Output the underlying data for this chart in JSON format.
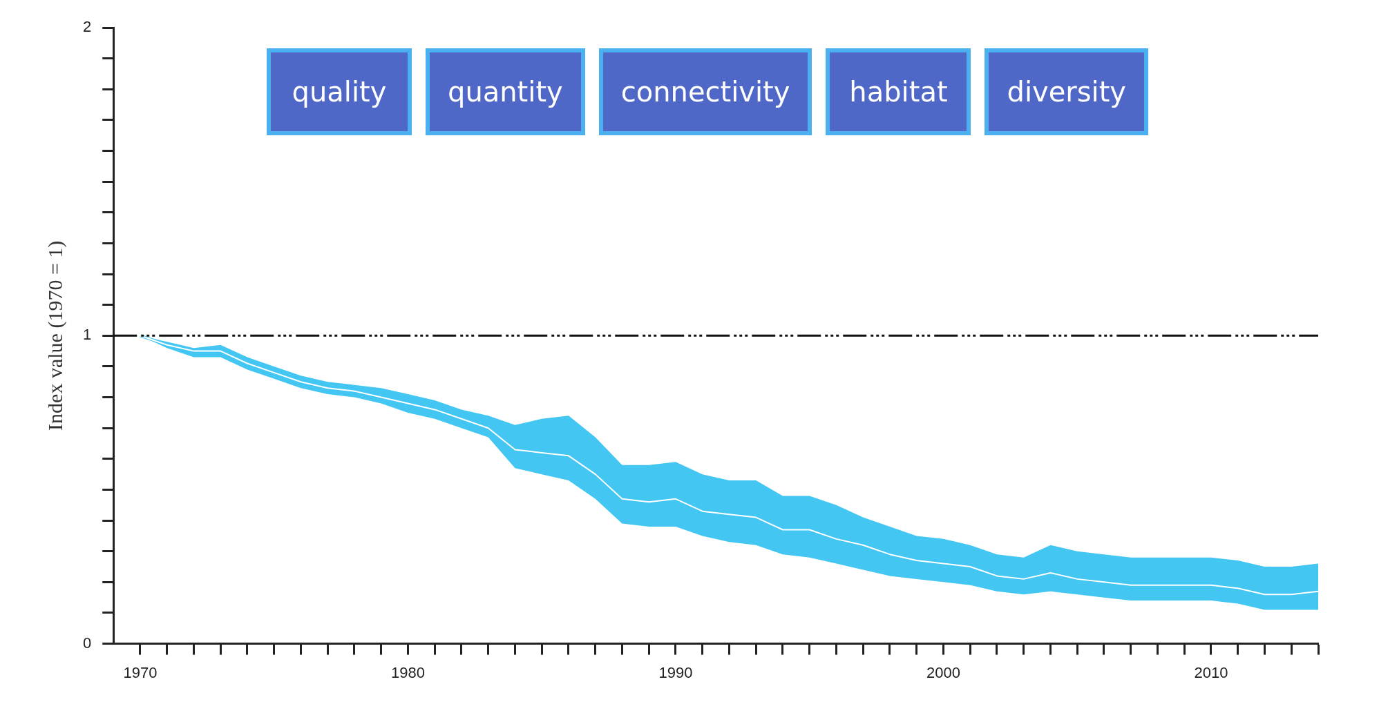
{
  "chart_data": {
    "type": "line",
    "ylabel": "Index value (1970 = 1)",
    "annotations": [
      "quality",
      "quantity",
      "connectivity",
      "habitat",
      "diversity"
    ],
    "x": [
      1970,
      1971,
      1972,
      1973,
      1974,
      1975,
      1976,
      1977,
      1978,
      1979,
      1980,
      1981,
      1982,
      1983,
      1984,
      1985,
      1986,
      1987,
      1988,
      1989,
      1990,
      1991,
      1992,
      1993,
      1994,
      1995,
      1996,
      1997,
      1998,
      1999,
      2000,
      2001,
      2002,
      2003,
      2004,
      2005,
      2006,
      2007,
      2008,
      2009,
      2010,
      2011,
      2012,
      2013,
      2014
    ],
    "series": [
      {
        "color": "#43c6f2",
        "values": [
          1.0,
          0.97,
          0.95,
          0.95,
          0.91,
          0.88,
          0.85,
          0.83,
          0.82,
          0.8,
          0.78,
          0.76,
          0.73,
          0.7,
          0.63,
          0.62,
          0.61,
          0.55,
          0.47,
          0.46,
          0.47,
          0.43,
          0.42,
          0.41,
          0.37,
          0.37,
          0.34,
          0.32,
          0.29,
          0.27,
          0.26,
          0.25,
          0.22,
          0.21,
          0.23,
          0.21,
          0.2,
          0.19,
          0.19,
          0.19,
          0.19,
          0.18,
          0.16,
          0.16,
          0.17
        ],
        "lower": [
          1.0,
          0.96,
          0.93,
          0.93,
          0.89,
          0.86,
          0.83,
          0.81,
          0.8,
          0.78,
          0.75,
          0.73,
          0.7,
          0.67,
          0.57,
          0.55,
          0.53,
          0.47,
          0.39,
          0.38,
          0.38,
          0.35,
          0.33,
          0.32,
          0.29,
          0.28,
          0.26,
          0.24,
          0.22,
          0.21,
          0.2,
          0.19,
          0.17,
          0.16,
          0.17,
          0.16,
          0.15,
          0.14,
          0.14,
          0.14,
          0.14,
          0.13,
          0.11,
          0.11,
          0.11
        ],
        "upper": [
          1.0,
          0.98,
          0.96,
          0.97,
          0.93,
          0.9,
          0.87,
          0.85,
          0.84,
          0.83,
          0.81,
          0.79,
          0.76,
          0.74,
          0.71,
          0.73,
          0.74,
          0.67,
          0.58,
          0.58,
          0.59,
          0.55,
          0.53,
          0.53,
          0.48,
          0.48,
          0.45,
          0.41,
          0.38,
          0.35,
          0.34,
          0.32,
          0.29,
          0.28,
          0.32,
          0.3,
          0.29,
          0.28,
          0.28,
          0.28,
          0.28,
          0.27,
          0.25,
          0.25,
          0.26
        ]
      }
    ],
    "xlim": [
      1969,
      2014
    ],
    "xticks": [
      1970,
      {
        "value": 1971,
        "label": null
      },
      {
        "value": 1972,
        "label": null
      },
      {
        "value": 1973,
        "label": null
      },
      {
        "value": 1974,
        "label": null
      },
      {
        "value": 1975,
        "label": null
      },
      {
        "value": 1976,
        "label": null
      },
      {
        "value": 1977,
        "label": null
      },
      {
        "value": 1978,
        "label": null
      },
      {
        "value": 1979,
        "label": null
      },
      1980,
      {
        "value": 1981,
        "label": null
      },
      {
        "value": 1982,
        "label": null
      },
      {
        "value": 1983,
        "label": null
      },
      {
        "value": 1984,
        "label": null
      },
      {
        "value": 1985,
        "label": null
      },
      {
        "value": 1986,
        "label": null
      },
      {
        "value": 1987,
        "label": null
      },
      {
        "value": 1988,
        "label": null
      },
      {
        "value": 1989,
        "label": null
      },
      1990,
      {
        "value": 1991,
        "label": null
      },
      {
        "value": 1992,
        "label": null
      },
      {
        "value": 1993,
        "label": null
      },
      {
        "value": 1994,
        "label": null
      },
      {
        "value": 1995,
        "label": null
      },
      {
        "value": 1996,
        "label": null
      },
      {
        "value": 1997,
        "label": null
      },
      {
        "value": 1998,
        "label": null
      },
      {
        "value": 1999,
        "label": null
      },
      2000,
      {
        "value": 2001,
        "label": null
      },
      {
        "value": 2002,
        "label": null
      },
      {
        "value": 2003,
        "label": null
      },
      {
        "value": 2004,
        "label": null
      },
      {
        "value": 2005,
        "label": null
      },
      {
        "value": 2006,
        "label": null
      },
      {
        "value": 2007,
        "label": null
      },
      {
        "value": 2008,
        "label": null
      },
      {
        "value": 2009,
        "label": null
      },
      2010,
      {
        "value": 2011,
        "label": null
      },
      {
        "value": 2012,
        "label": null
      },
      {
        "value": 2013,
        "label": null
      },
      {
        "value": 2014,
        "label": null
      }
    ],
    "ylim": [
      0,
      2
    ],
    "yticks": [
      0,
      {
        "value": 0.1,
        "label": null
      },
      {
        "value": 0.2,
        "label": null
      },
      {
        "value": 0.3,
        "label": null
      },
      {
        "value": 0.4,
        "label": null
      },
      {
        "value": 0.5,
        "label": null
      },
      {
        "value": 0.6,
        "label": null
      },
      {
        "value": 0.7,
        "label": null
      },
      {
        "value": 0.8,
        "label": null
      },
      {
        "value": 0.9,
        "label": null
      },
      1,
      {
        "value": 1.1,
        "label": null
      },
      {
        "value": 1.2,
        "label": null
      },
      {
        "value": 1.3,
        "label": null
      },
      {
        "value": 1.4,
        "label": null
      },
      {
        "value": 1.5,
        "label": null
      },
      {
        "value": 1.6,
        "label": null
      },
      {
        "value": 1.7,
        "label": null
      },
      {
        "value": 1.8,
        "label": null
      },
      {
        "value": 1.9,
        "label": null
      },
      2
    ],
    "ref_lines": [
      {
        "axis": "y",
        "value": 1,
        "line_style": "dashdot",
        "color": "#111111"
      }
    ],
    "grid": false,
    "legend": false
  }
}
